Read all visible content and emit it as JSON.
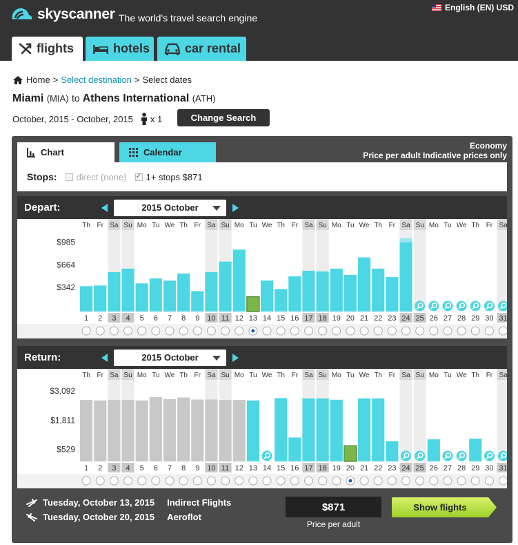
{
  "brand": {
    "name": "skyscanner",
    "tagline": "The world's travel search engine"
  },
  "locale": {
    "label": "English (EN) USD",
    "flag_icon": "us-flag-icon"
  },
  "nav_tabs": {
    "flights": "flights",
    "hotels": "hotels",
    "car_rental": "car rental"
  },
  "breadcrumb": {
    "home": "Home",
    "sep1": ">",
    "select_destination": "Select destination",
    "sep2": ">",
    "select_dates": "Select dates"
  },
  "route": {
    "origin": "Miami",
    "origin_code": "(MIA)",
    "to": "to",
    "destination": "Athens International",
    "destination_code": "(ATH)"
  },
  "search": {
    "dates": "October, 2015 - October, 2015",
    "passengers": "x 1",
    "change_label": "Change Search"
  },
  "panel": {
    "tab_chart": "Chart",
    "tab_calendar": "Calendar",
    "cabin": "Economy",
    "price_note": "Price per adult Indicative prices only",
    "stops_label": "Stops:",
    "stop_direct": "direct (none)",
    "stop_one_plus": "1+ stops $871"
  },
  "colors": {
    "bar": "#4dd6e4",
    "selected": "#7ab648",
    "unavailable": "#c8c8c8",
    "weekend_col": "#ededed",
    "accent": "#4dd6e4"
  },
  "chart_data": [
    {
      "type": "bar",
      "title": "Depart:",
      "month": "2015 October",
      "y_ticks": [
        "$985",
        "$664",
        "$342"
      ],
      "y_tick_values": [
        985,
        664,
        342
      ],
      "ylim": [
        0,
        1100
      ],
      "weekday_headers": [
        "Th",
        "Fr",
        "Sa",
        "Su",
        "Mo",
        "Tu",
        "We",
        "Th",
        "Fr",
        "Sa",
        "Su",
        "Mo",
        "Tu",
        "We",
        "Th",
        "Fr",
        "Sa",
        "Su",
        "Mo",
        "Tu",
        "We",
        "Th",
        "Fr",
        "Sa",
        "Su",
        "Mo",
        "Tu",
        "We",
        "Th",
        "Fr",
        "Sa"
      ],
      "categories": [
        "1",
        "2",
        "3",
        "4",
        "5",
        "6",
        "7",
        "8",
        "9",
        "10",
        "11",
        "12",
        "13",
        "14",
        "15",
        "16",
        "17",
        "18",
        "19",
        "20",
        "21",
        "22",
        "23",
        "24",
        "25",
        "26",
        "27",
        "28",
        "29",
        "30",
        "31"
      ],
      "values": [
        360,
        370,
        560,
        610,
        400,
        470,
        440,
        540,
        290,
        560,
        710,
        880,
        210,
        440,
        320,
        500,
        580,
        570,
        610,
        520,
        770,
        610,
        490,
        985,
        null,
        null,
        null,
        null,
        null,
        null,
        null
      ],
      "selected_day": "13"
    },
    {
      "type": "bar",
      "title": "Return:",
      "month": "2015 October",
      "y_ticks": [
        "$3,092",
        "$1,811",
        "$529"
      ],
      "y_tick_values": [
        3092,
        1811,
        529
      ],
      "ylim": [
        0,
        3400
      ],
      "weekday_headers": [
        "Th",
        "Fr",
        "Sa",
        "Su",
        "Mo",
        "Tu",
        "We",
        "Th",
        "Fr",
        "Sa",
        "Su",
        "Mo",
        "Tu",
        "We",
        "Th",
        "Fr",
        "Sa",
        "Su",
        "Mo",
        "Tu",
        "We",
        "Th",
        "Fr",
        "Sa",
        "Su",
        "Mo",
        "Tu",
        "We",
        "Th",
        "Fr",
        "Sa"
      ],
      "categories": [
        "1",
        "2",
        "3",
        "4",
        "5",
        "6",
        "7",
        "8",
        "9",
        "10",
        "11",
        "12",
        "13",
        "14",
        "15",
        "16",
        "17",
        "18",
        "19",
        "20",
        "21",
        "22",
        "23",
        "24",
        "25",
        "26",
        "27",
        "28",
        "29",
        "30",
        "31"
      ],
      "values": [
        2700,
        2680,
        2700,
        2700,
        2680,
        2830,
        2740,
        2810,
        2720,
        2720,
        2700,
        2700,
        2680,
        null,
        2780,
        1050,
        2770,
        2770,
        2710,
        690,
        2770,
        2770,
        890,
        null,
        null,
        970,
        null,
        null,
        1000,
        null,
        null
      ],
      "unavailable_days": [
        "1",
        "2",
        "3",
        "4",
        "5",
        "6",
        "7",
        "8",
        "9",
        "10",
        "11",
        "12"
      ],
      "selected_day": "20"
    }
  ],
  "summary": {
    "outbound": {
      "date": "Tuesday, October 13, 2015",
      "carrier": "Indirect Flights"
    },
    "inbound": {
      "date": "Tuesday, October 20, 2015",
      "carrier": "Aeroflot"
    },
    "price": "$871",
    "price_label": "Price per adult",
    "show_label": "Show flights"
  }
}
